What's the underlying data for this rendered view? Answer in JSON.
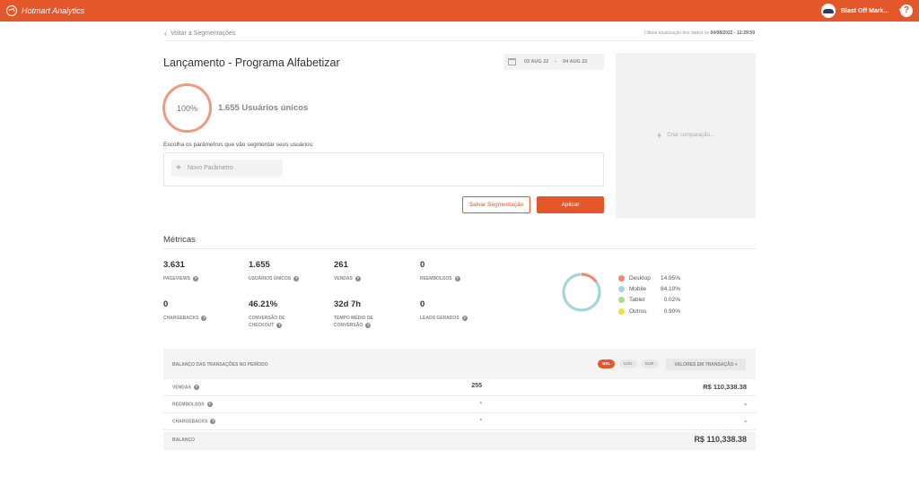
{
  "app": {
    "title": "Hotmart Analytics"
  },
  "account": {
    "name": "Blast Off Mark..."
  },
  "header": {
    "back_label": "Voltar a Segmentações",
    "updated_prefix": "Última atualização dos dados às",
    "updated_value": "04/08/2022 - 12:29:59"
  },
  "segment": {
    "title": "Lançamento - Programa Alfabetizar",
    "date_from": "03 AUG 22",
    "date_sep": "-",
    "date_to": "04 AUG 22",
    "percent": "100%",
    "unique_users": "1.655 Usuários únicos",
    "choose_params_label": "Escolha os parâmetros que vão segmentar seus usuários:",
    "new_param_label": "Novo Parâmetro",
    "save_label": "Salvar Segmentação",
    "apply_label": "Aplicar",
    "compare_label": "Criar comparação..."
  },
  "metrics": {
    "title": "Métricas",
    "items": [
      {
        "value": "3.631",
        "label": "PAGEVIEWS"
      },
      {
        "value": "1.655",
        "label": "USUÁRIOS ÚNICOS"
      },
      {
        "value": "261",
        "label": "VENDAS"
      },
      {
        "value": "0",
        "label": "REEMBOLSOS"
      },
      {
        "value": "0",
        "label": "CHARGEBACKS"
      },
      {
        "value": "46.21%",
        "label": "CONVERSÃO DE CHECKOUT"
      },
      {
        "value": "32d 7h",
        "label": "TEMPO MÉDIO DE CONVERSÃO"
      },
      {
        "value": "0",
        "label": "LEADS GERADOS"
      }
    ],
    "devices": [
      {
        "name": "Desktop",
        "value": "14.95%",
        "fraction": 0.1495,
        "color": "#ee8a6f"
      },
      {
        "name": "Mobile",
        "value": "84.10%",
        "fraction": 0.841,
        "color": "#a4d5dc"
      },
      {
        "name": "Tablet",
        "value": "0.02%",
        "fraction": 0.0002,
        "color": "#a9dd8a"
      },
      {
        "name": "Outros",
        "value": "0.90%",
        "fraction": 0.009,
        "color": "#f5dc4c"
      }
    ]
  },
  "balance": {
    "title": "BALANÇO DAS TRANSAÇÕES NO PERÍODO",
    "currencies": [
      "BRL",
      "USD",
      "EUR"
    ],
    "selected_currency": "BRL",
    "values_label": "VALORES EM TRANSAÇÃO ▾",
    "rows": [
      {
        "label": "VENDAS",
        "count": "255",
        "amount": "R$ 110,338.38"
      },
      {
        "label": "REEMBOLSOS",
        "count": "-",
        "amount": "-"
      },
      {
        "label": "CHARGEBACKS",
        "count": "-",
        "amount": "-"
      }
    ],
    "total_label": "BALANÇO",
    "total_amount": "R$ 110,338.38"
  }
}
